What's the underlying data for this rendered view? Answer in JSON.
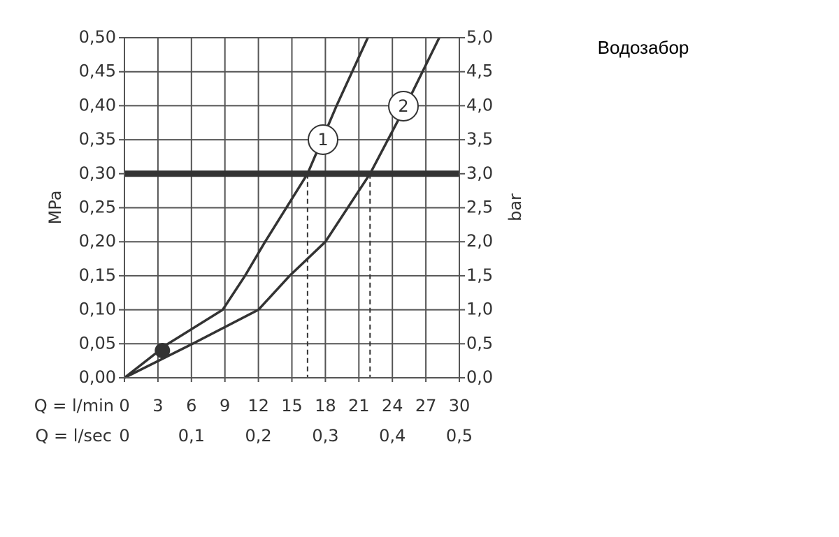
{
  "chart_data": {
    "type": "line",
    "title": "Водозабор",
    "ylabel": "MPa",
    "y2label": "bar",
    "xlabel": "Q = l/min",
    "x2label": "Q = l/sec",
    "xlim": [
      0,
      30
    ],
    "xticks": [
      0,
      3,
      6,
      9,
      12,
      15,
      18,
      21,
      24,
      27,
      30
    ],
    "x2lim": [
      0,
      0.5
    ],
    "x2ticks": [
      0,
      {
        "value": 0.1,
        "label": "0,1"
      },
      {
        "value": 0.2,
        "label": "0,2"
      },
      {
        "value": 0.3,
        "label": "0,3"
      },
      {
        "value": 0.4,
        "label": "0,4"
      },
      {
        "value": 0.5,
        "label": "0,5"
      }
    ],
    "ylim": [
      0,
      0.5
    ],
    "yticks": [
      {
        "value": 0,
        "label": "0,00"
      },
      {
        "value": 0.05,
        "label": "0,05"
      },
      {
        "value": 0.1,
        "label": "0,10"
      },
      {
        "value": 0.15,
        "label": "0,15"
      },
      {
        "value": 0.2,
        "label": "0,20"
      },
      {
        "value": 0.25,
        "label": "0,25"
      },
      {
        "value": 0.3,
        "label": "0,30"
      },
      {
        "value": 0.35,
        "label": "0,35"
      },
      {
        "value": 0.4,
        "label": "0,40"
      },
      {
        "value": 0.45,
        "label": "0,45"
      },
      {
        "value": 0.5,
        "label": "0,50"
      }
    ],
    "y2lim": [
      0,
      5
    ],
    "y2ticks": [
      {
        "value": 0,
        "label": "0,0"
      },
      {
        "value": 0.5,
        "label": "0,5"
      },
      {
        "value": 1,
        "label": "1,0"
      },
      {
        "value": 1.5,
        "label": "1,5"
      },
      {
        "value": 2,
        "label": "2,0"
      },
      {
        "value": 2.5,
        "label": "2,5"
      },
      {
        "value": 3,
        "label": "3,0"
      },
      {
        "value": 3.5,
        "label": "3,5"
      },
      {
        "value": 4,
        "label": "4,0"
      },
      {
        "value": 4.5,
        "label": "4,5"
      },
      {
        "value": 5,
        "label": "5,0"
      }
    ],
    "grid": true,
    "series": [
      {
        "name": "1",
        "color": "#333333",
        "x": [
          0,
          3.9,
          8.8,
          10.8,
          12.6,
          16.4,
          19.0,
          21.8
        ],
        "values": [
          0,
          0.05,
          0.1,
          0.15,
          0.2,
          0.3,
          0.4,
          0.5
        ]
      },
      {
        "name": "2",
        "color": "#333333",
        "x": [
          0,
          6.1,
          12.0,
          14.8,
          18.0,
          22.0,
          25.2,
          28.2
        ],
        "values": [
          0,
          0.05,
          0.1,
          0.15,
          0.2,
          0.3,
          0.4,
          0.5
        ]
      }
    ],
    "reference_line": 0.3,
    "drop_lines": [
      16.4,
      22.0
    ],
    "point": {
      "x": 3.4,
      "y": 0.04
    }
  }
}
